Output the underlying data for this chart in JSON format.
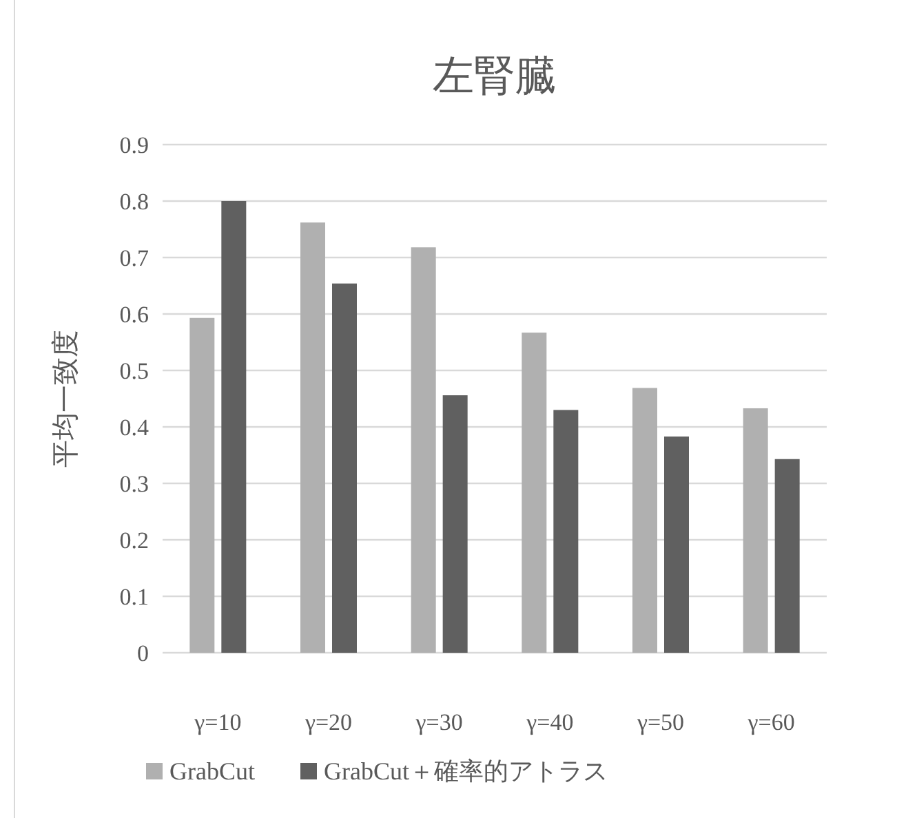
{
  "chart_data": {
    "type": "bar",
    "title": "左腎臓",
    "ylabel": "平均一致度",
    "categories": [
      "γ=10",
      "γ=20",
      "γ=30",
      "γ=40",
      "γ=50",
      "γ=60"
    ],
    "series": [
      {
        "name": "GrabCut",
        "color": "#b0b0b0",
        "values": [
          0.593,
          0.762,
          0.718,
          0.567,
          0.469,
          0.433
        ]
      },
      {
        "name": "GrabCut＋確率的アトラス",
        "color": "#606060",
        "values": [
          0.8,
          0.654,
          0.456,
          0.43,
          0.383,
          0.343
        ]
      }
    ],
    "ylim": [
      0,
      0.9
    ],
    "yticks": [
      0,
      0.1,
      0.2,
      0.3,
      0.4,
      0.5,
      0.6,
      0.7,
      0.8,
      0.9
    ],
    "grid": "y",
    "legend": "bottom"
  }
}
